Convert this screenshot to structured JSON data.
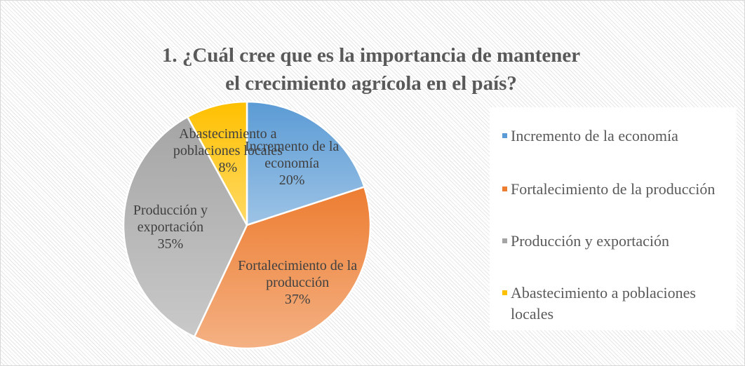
{
  "chart_data": {
    "type": "pie",
    "title": "1. ¿Cuál cree que es la importancia de mantener el crecimiento agrícola en el país?",
    "categories": [
      "Incremento de la economía",
      "Fortalecimiento de la producción",
      "Producción y exportación",
      "Abastecimiento a poblaciones locales"
    ],
    "values": [
      20,
      37,
      35,
      8
    ],
    "value_labels": [
      "20%",
      "37%",
      "35%",
      "8%"
    ],
    "colors": [
      "#5b9bd5",
      "#ed7d31",
      "#a5a5a5",
      "#ffc000"
    ],
    "legend": "right"
  }
}
